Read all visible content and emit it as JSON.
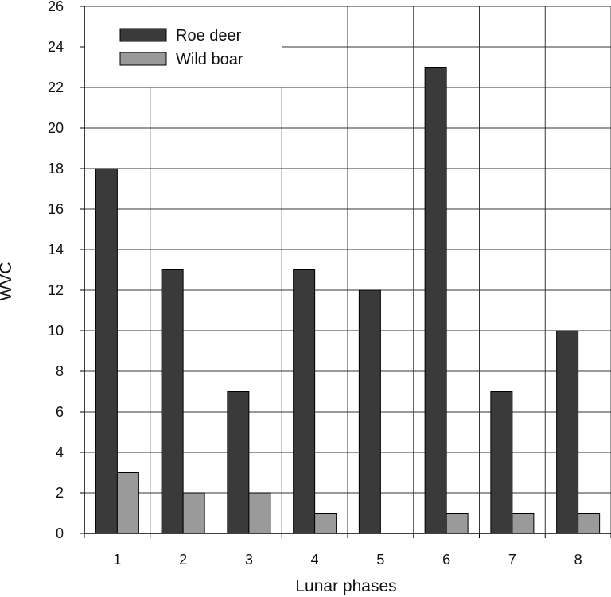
{
  "chart_data": {
    "type": "bar",
    "title": "",
    "xlabel": "Lunar phases",
    "ylabel": "WVC",
    "categories": [
      "1",
      "2",
      "3",
      "4",
      "5",
      "6",
      "7",
      "8"
    ],
    "series": [
      {
        "name": "Roe deer",
        "values": [
          18,
          13,
          7,
          13,
          12,
          23,
          7,
          10
        ],
        "color": "#3a3a3a"
      },
      {
        "name": "Wild boar",
        "values": [
          3,
          2,
          2,
          1,
          0,
          1,
          1,
          1
        ],
        "color": "#9a9a9a"
      }
    ],
    "ylim": [
      0,
      26
    ],
    "yticks": [
      "0",
      "2",
      "4",
      "6",
      "8",
      "10",
      "12",
      "14",
      "16",
      "18",
      "20",
      "22",
      "24",
      "26"
    ],
    "grid": true,
    "legend_position": "top-left"
  }
}
